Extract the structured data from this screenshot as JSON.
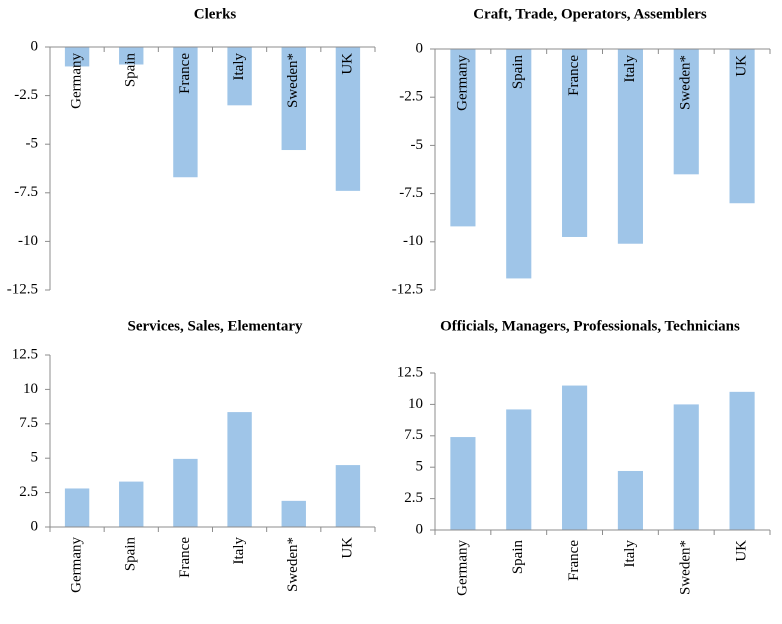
{
  "chart_data": [
    {
      "type": "bar",
      "title": "Clerks",
      "categories": [
        "Germany",
        "Spain",
        "France",
        "Italy",
        "Sweden*",
        "UK"
      ],
      "values": [
        -1.0,
        -0.9,
        -6.7,
        -3.0,
        -5.3,
        -7.4
      ],
      "color": "#9fc5e8",
      "ylim": [
        -12.5,
        0
      ],
      "yticks": [
        0,
        -2.5,
        -5,
        -7.5,
        -10,
        -12.5
      ]
    },
    {
      "type": "bar",
      "title": "Craft, Trade, Operators, Assemblers",
      "categories": [
        "Germany",
        "Spain",
        "France",
        "Italy",
        "Sweden*",
        "UK"
      ],
      "values": [
        -9.2,
        -11.9,
        -9.75,
        -10.1,
        -6.5,
        -8.0
      ],
      "color": "#9fc5e8",
      "ylim": [
        -12.5,
        0
      ],
      "yticks": [
        0,
        -2.5,
        -5,
        -7.5,
        -10,
        -12.5
      ]
    },
    {
      "type": "bar",
      "title": "Services, Sales, Elementary",
      "categories": [
        "Germany",
        "Spain",
        "France",
        "Italy",
        "Sweden*",
        "UK"
      ],
      "values": [
        2.8,
        3.3,
        4.95,
        8.35,
        1.9,
        4.5
      ],
      "color": "#9fc5e8",
      "ylim": [
        0,
        12.5
      ],
      "yticks": [
        12.5,
        10,
        7.5,
        5,
        2.5,
        0
      ]
    },
    {
      "type": "bar",
      "title": "Officials, Managers, Professionals, Technicians",
      "categories": [
        "Germany",
        "Spain",
        "France",
        "Italy",
        "Sweden*",
        "UK"
      ],
      "values": [
        7.4,
        9.6,
        11.5,
        4.7,
        10.0,
        11.0
      ],
      "color": "#9fc5e8",
      "ylim": [
        0,
        12.5
      ],
      "yticks": [
        12.5,
        10,
        7.5,
        5,
        2.5,
        0
      ]
    }
  ]
}
